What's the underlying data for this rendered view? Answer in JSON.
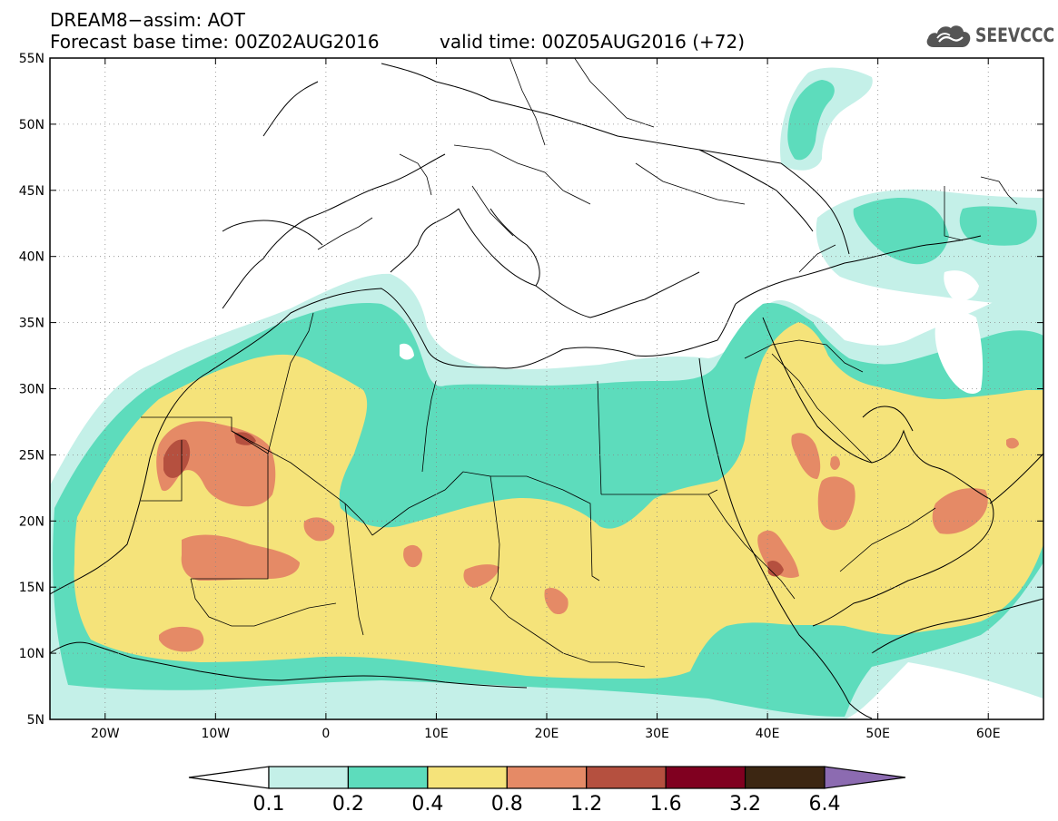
{
  "header": {
    "title": "DREAM8−assim: AOT",
    "base_time": "Forecast base time: 00Z02AUG2016",
    "valid_time": "valid time: 00Z05AUG2016 (+72)"
  },
  "logo": {
    "text": "SEEVCCC",
    "icon": "cloud-icon"
  },
  "map": {
    "lon_range": [
      -25,
      65
    ],
    "lat_range": [
      5,
      55
    ],
    "lon_ticks": [
      {
        "value": -20,
        "label": "20W"
      },
      {
        "value": -10,
        "label": "10W"
      },
      {
        "value": 0,
        "label": "0"
      },
      {
        "value": 10,
        "label": "10E"
      },
      {
        "value": 20,
        "label": "20E"
      },
      {
        "value": 30,
        "label": "30E"
      },
      {
        "value": 40,
        "label": "40E"
      },
      {
        "value": 50,
        "label": "50E"
      },
      {
        "value": 60,
        "label": "60E"
      }
    ],
    "lat_ticks": [
      {
        "value": 5,
        "label": "5N"
      },
      {
        "value": 10,
        "label": "10N"
      },
      {
        "value": 15,
        "label": "15N"
      },
      {
        "value": 20,
        "label": "20N"
      },
      {
        "value": 25,
        "label": "25N"
      },
      {
        "value": 30,
        "label": "30N"
      },
      {
        "value": 35,
        "label": "35N"
      },
      {
        "value": 40,
        "label": "40N"
      },
      {
        "value": 45,
        "label": "45N"
      },
      {
        "value": 50,
        "label": "50N"
      },
      {
        "value": 55,
        "label": "55N"
      }
    ],
    "gridlines": "dotted"
  },
  "colorbar": {
    "labels": [
      "0.1",
      "0.2",
      "0.4",
      "0.8",
      "1.2",
      "1.6",
      "3.2",
      "6.4"
    ],
    "under_color": "#ffffff",
    "colors": [
      "#c4f0e8",
      "#5ddcbc",
      "#f5e37a",
      "#e58a66",
      "#b5503f",
      "#800020",
      "#3c2612"
    ],
    "over_color": "#8c6bb1"
  },
  "colors": {
    "aot_0_1": "#c4f0e8",
    "aot_0_2": "#5ddcbc",
    "aot_0_4": "#f5e37a",
    "aot_0_8": "#e58a66",
    "aot_1_2": "#b5503f"
  }
}
